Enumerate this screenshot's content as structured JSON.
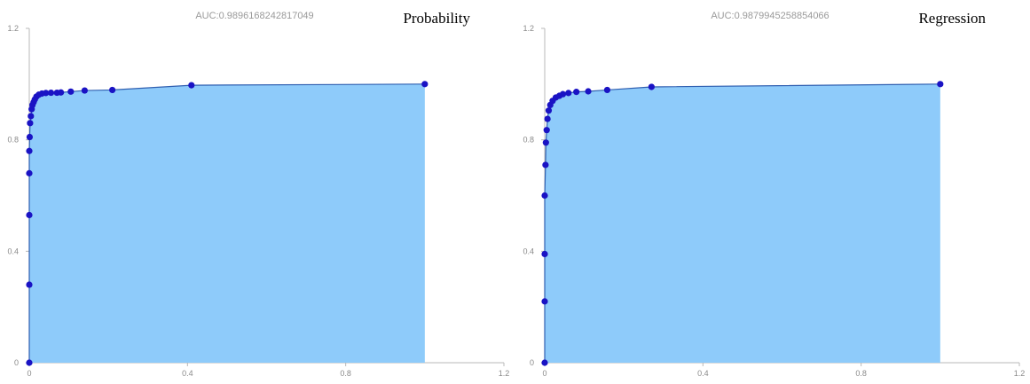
{
  "chart_data": [
    {
      "type": "area",
      "title": "AUC:0.9896168242817049",
      "label": "Probability",
      "xlim": [
        0,
        1.2
      ],
      "ylim": [
        0,
        1.2
      ],
      "x_ticks": [
        "0",
        "0.4",
        "0.8",
        "1.2"
      ],
      "y_ticks": [
        "0",
        "0.4",
        "0.8",
        "1.2"
      ],
      "grid": false,
      "colors": {
        "fill": "#8ecbfa",
        "line": "#2f5fb0",
        "point": "#1a13c4"
      },
      "x": [
        0,
        0,
        0,
        0,
        0,
        0.001,
        0.002,
        0.004,
        0.006,
        0.008,
        0.011,
        0.014,
        0.018,
        0.024,
        0.032,
        0.042,
        0.055,
        0.07,
        0.08,
        0.105,
        0.14,
        0.21,
        0.41,
        1.0
      ],
      "y": [
        0,
        0.28,
        0.53,
        0.68,
        0.76,
        0.81,
        0.86,
        0.885,
        0.91,
        0.925,
        0.935,
        0.945,
        0.955,
        0.962,
        0.966,
        0.968,
        0.969,
        0.969,
        0.97,
        0.973,
        0.977,
        0.979,
        0.996,
        1.0
      ]
    },
    {
      "type": "area",
      "title": "AUC:0.9879945258854066",
      "label": "Regression",
      "xlim": [
        0,
        1.2
      ],
      "ylim": [
        0,
        1.2
      ],
      "x_ticks": [
        "0",
        "0.4",
        "0.8",
        "1.2"
      ],
      "y_ticks": [
        "0",
        "0.4",
        "0.8",
        "1.2"
      ],
      "grid": false,
      "colors": {
        "fill": "#8ecbfa",
        "line": "#2f5fb0",
        "point": "#1a13c4"
      },
      "x": [
        0,
        0,
        0,
        0,
        0.002,
        0.003,
        0.005,
        0.007,
        0.01,
        0.014,
        0.02,
        0.028,
        0.037,
        0.046,
        0.06,
        0.08,
        0.11,
        0.158,
        0.27,
        1.0
      ],
      "y": [
        0,
        0.22,
        0.39,
        0.6,
        0.71,
        0.79,
        0.835,
        0.875,
        0.905,
        0.925,
        0.94,
        0.952,
        0.958,
        0.964,
        0.968,
        0.972,
        0.974,
        0.979,
        0.99,
        1.0
      ]
    }
  ]
}
